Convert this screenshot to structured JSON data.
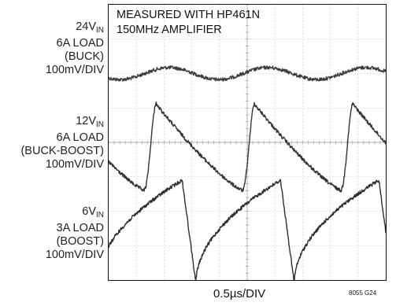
{
  "chart_data": {
    "type": "line",
    "annotation": [
      "MEASURED WITH HP461N",
      "150MHz AMPLIFIER"
    ],
    "xlabel": "0.5µs/DIV",
    "figure_code": "8055 G24",
    "grid": true,
    "divisions": {
      "x": 10,
      "y": 8
    },
    "traces": [
      {
        "label_lines": [
          "24V",
          "6A LOAD",
          "(BUCK)",
          "100mV/DIV"
        ],
        "vin_subscript": "IN",
        "shape": "sine-like",
        "period_div": 3.55,
        "peak_to_peak_div": 0.35,
        "center_div_from_top": 2.0,
        "phase_div": 1.3
      },
      {
        "label_lines": [
          "12V",
          "6A LOAD",
          "(BUCK-BOOST)",
          "100mV/DIV"
        ],
        "vin_subscript": "IN",
        "shape": "fast rise, slow decay",
        "period_div": 3.55,
        "peak_to_peak_div": 2.5,
        "center_div_from_top": 4.1,
        "phase_div": 1.3
      },
      {
        "label_lines": [
          "6V",
          "3A LOAD",
          "(BOOST)",
          "100mV/DIV"
        ],
        "vin_subscript": "IN",
        "shape": "sawtooth ramp with sharp drop",
        "period_div": 3.55,
        "peak_to_peak_div": 3.0,
        "center_div_from_top": 6.6,
        "phase_div": 3.15
      }
    ]
  }
}
